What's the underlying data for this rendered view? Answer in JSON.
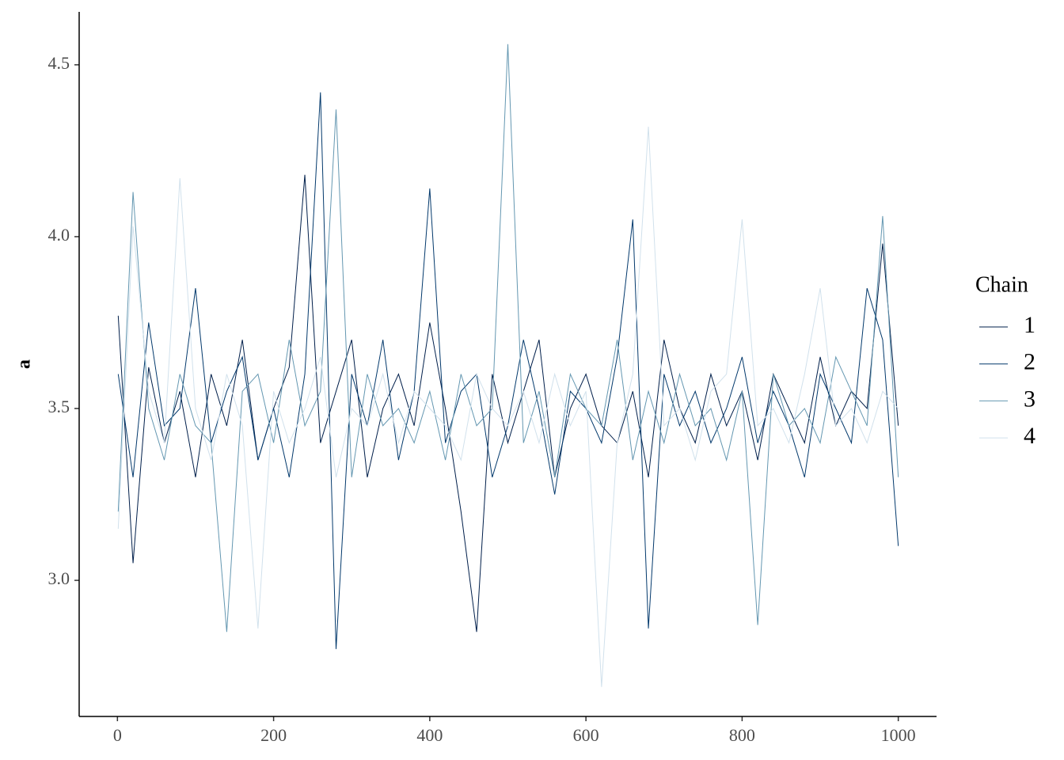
{
  "chart_data": {
    "type": "line",
    "y_label": "a",
    "legend_title": "Chain",
    "legend_position": "right",
    "grid": false,
    "x": [
      1,
      20,
      40,
      60,
      80,
      100,
      120,
      140,
      160,
      180,
      200,
      220,
      240,
      260,
      280,
      300,
      320,
      340,
      360,
      380,
      400,
      420,
      440,
      460,
      480,
      500,
      520,
      540,
      560,
      580,
      600,
      620,
      640,
      660,
      680,
      700,
      720,
      740,
      760,
      780,
      800,
      820,
      840,
      860,
      880,
      900,
      920,
      940,
      960,
      980,
      1000
    ],
    "xlim": [
      -49,
      1049
    ],
    "xticks": [
      0,
      200,
      400,
      600,
      800,
      1000
    ],
    "ylim": [
      2.604,
      4.654
    ],
    "yticks": [
      {
        "value": 3,
        "label": "3.0"
      },
      3.5,
      {
        "value": 4,
        "label": "4.0"
      },
      4.5
    ],
    "series": [
      {
        "name": "1",
        "color": "#011f4b",
        "values": [
          3.77,
          3.05,
          3.62,
          3.4,
          3.55,
          3.3,
          3.6,
          3.45,
          3.7,
          3.35,
          3.5,
          3.62,
          4.18,
          3.4,
          3.55,
          3.7,
          3.3,
          3.5,
          3.6,
          3.45,
          3.75,
          3.5,
          3.2,
          2.85,
          3.6,
          3.4,
          3.55,
          3.7,
          3.3,
          3.5,
          3.6,
          3.45,
          3.4,
          3.55,
          3.3,
          3.7,
          3.5,
          3.4,
          3.6,
          3.45,
          3.55,
          3.35,
          3.6,
          3.5,
          3.4,
          3.65,
          3.45,
          3.55,
          3.5,
          3.98,
          3.45
        ]
      },
      {
        "name": "2",
        "color": "#03396c",
        "values": [
          3.6,
          3.3,
          3.75,
          3.45,
          3.5,
          3.85,
          3.4,
          3.55,
          3.65,
          3.35,
          3.5,
          3.3,
          3.6,
          4.42,
          2.8,
          3.6,
          3.45,
          3.7,
          3.35,
          3.55,
          4.14,
          3.4,
          3.55,
          3.6,
          3.3,
          3.45,
          3.7,
          3.5,
          3.25,
          3.55,
          3.5,
          3.4,
          3.65,
          4.05,
          2.86,
          3.6,
          3.45,
          3.55,
          3.4,
          3.5,
          3.65,
          3.4,
          3.55,
          3.45,
          3.3,
          3.6,
          3.5,
          3.4,
          3.85,
          3.7,
          3.1
        ]
      },
      {
        "name": "3",
        "color": "#6497b1",
        "values": [
          3.2,
          4.13,
          3.5,
          3.35,
          3.6,
          3.45,
          3.4,
          2.85,
          3.55,
          3.6,
          3.4,
          3.7,
          3.45,
          3.55,
          4.37,
          3.3,
          3.6,
          3.45,
          3.5,
          3.4,
          3.55,
          3.35,
          3.6,
          3.45,
          3.5,
          4.56,
          3.4,
          3.55,
          3.3,
          3.6,
          3.5,
          3.45,
          3.7,
          3.35,
          3.55,
          3.4,
          3.6,
          3.45,
          3.5,
          3.35,
          3.55,
          2.87,
          3.6,
          3.45,
          3.5,
          3.4,
          3.65,
          3.55,
          3.45,
          4.06,
          3.3
        ]
      },
      {
        "name": "4",
        "color": "#d1e1ec",
        "values": [
          3.15,
          4.03,
          3.55,
          3.4,
          4.17,
          3.5,
          3.35,
          3.6,
          3.45,
          2.86,
          3.55,
          3.4,
          3.5,
          3.65,
          3.3,
          3.5,
          3.45,
          3.6,
          3.4,
          3.55,
          3.5,
          3.45,
          3.35,
          3.6,
          3.5,
          3.45,
          3.55,
          3.4,
          3.6,
          3.45,
          3.55,
          2.69,
          3.4,
          3.6,
          4.32,
          3.45,
          3.5,
          3.35,
          3.55,
          3.6,
          4.05,
          3.45,
          3.5,
          3.4,
          3.6,
          3.85,
          3.45,
          3.5,
          3.4,
          3.55,
          3.5
        ]
      }
    ]
  }
}
